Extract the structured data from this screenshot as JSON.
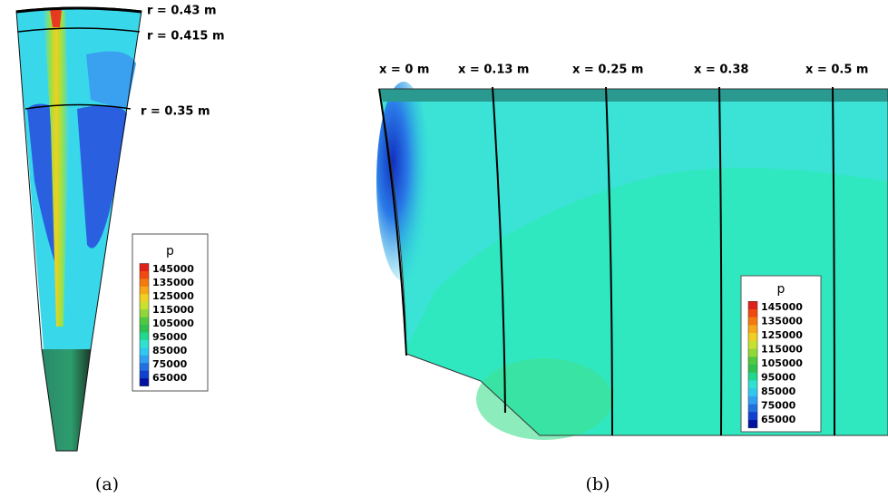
{
  "panels": [
    {
      "caption": "(a)",
      "annotations": [
        "r = 0.43 m",
        "r = 0.415 m",
        "r = 0.35 m"
      ],
      "legend": {
        "title": "p",
        "labels": [
          "145000",
          "135000",
          "125000",
          "115000",
          "105000",
          "95000",
          "85000",
          "75000",
          "65000"
        ]
      }
    },
    {
      "caption": "(b)",
      "annotations": [
        "x = 0 m",
        "x = 0.13 m",
        "x = 0.25 m",
        "x = 0.38",
        "x = 0.5 m"
      ],
      "legend": {
        "title": "p",
        "labels": [
          "145000",
          "135000",
          "125000",
          "115000",
          "105000",
          "95000",
          "85000",
          "75000",
          "65000"
        ]
      }
    }
  ]
}
